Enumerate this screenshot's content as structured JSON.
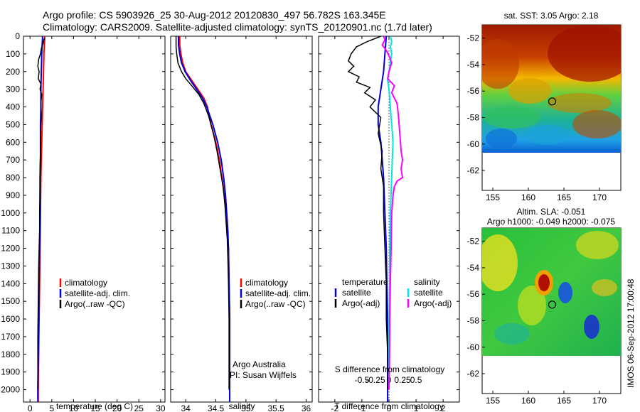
{
  "header": {
    "line1": "Argo profile: CS 5903926_25 30-Aug-2012 20120830_497 56.782S 163.345E",
    "line2": "Climatology: CARS2009. Satellite-adjusted climatology: synTS_20120901.nc (1.7d later)"
  },
  "colors": {
    "climatology": "#ff0000",
    "satellite": "#0000dd",
    "argo": "#000000",
    "satellite_salinity": "#00e5e5",
    "argo_salinity_adj": "#ff00ff"
  },
  "depth_axis": {
    "ylim": [
      0,
      2070
    ],
    "ticks": [
      0,
      100,
      200,
      300,
      400,
      500,
      600,
      700,
      800,
      900,
      1000,
      1100,
      1200,
      1300,
      1400,
      1500,
      1600,
      1700,
      1800,
      1900,
      2000
    ]
  },
  "legends": {
    "temp": [
      "climatology",
      "satellite-adj. clim.",
      "Argo(..raw -QC)"
    ],
    "sal": [
      "climatology",
      "satellite-adj. clim.",
      "Argo(..raw -QC)"
    ],
    "diff_temperature": {
      "title": "temperature",
      "items": [
        "satellite",
        "Argo(-adj)"
      ]
    },
    "diff_salinity": {
      "title": "salinity",
      "items": [
        "satellite",
        "Argo(-adj)"
      ]
    }
  },
  "annotations": {
    "org": "Argo Australia",
    "pi": "PI: Susan Wijffels",
    "s_diff_label": "S difference from climatology",
    "watermark": "IMOS 06-Sep-2012 17:00:48"
  },
  "chart_data": [
    {
      "type": "line",
      "xlabel": "temperature (deg C)",
      "xlim": [
        -1.5,
        31
      ],
      "xticks": [
        0,
        5,
        10,
        15,
        20,
        25,
        30
      ],
      "ylabel": "",
      "ylim": [
        0,
        2070
      ],
      "series": [
        {
          "name": "climatology",
          "color": "red",
          "points": [
            [
              3.4,
              0
            ],
            [
              3.3,
              50
            ],
            [
              3.2,
              100
            ],
            [
              3.1,
              200
            ],
            [
              3.0,
              300
            ],
            [
              2.9,
              400
            ],
            [
              2.8,
              500
            ],
            [
              2.7,
              600
            ],
            [
              2.6,
              700
            ],
            [
              2.5,
              800
            ],
            [
              2.4,
              1000
            ],
            [
              2.3,
              1200
            ],
            [
              2.2,
              1400
            ],
            [
              2.1,
              1600
            ],
            [
              2.0,
              1800
            ],
            [
              1.9,
              2000
            ],
            [
              1.9,
              2070
            ]
          ]
        },
        {
          "name": "satellite-adj. clim.",
          "color": "blue",
          "points": [
            [
              2.9,
              0
            ],
            [
              2.8,
              50
            ],
            [
              2.7,
              100
            ],
            [
              2.6,
              200
            ],
            [
              2.5,
              300
            ],
            [
              2.5,
              400
            ],
            [
              2.4,
              500
            ],
            [
              2.4,
              600
            ],
            [
              2.4,
              700
            ],
            [
              2.3,
              800
            ],
            [
              2.3,
              1000
            ],
            [
              2.2,
              1200
            ],
            [
              2.1,
              1400
            ],
            [
              2.0,
              1600
            ],
            [
              1.9,
              1800
            ],
            [
              1.8,
              2000
            ],
            [
              1.8,
              2070
            ]
          ]
        },
        {
          "name": "Argo(..raw -QC)",
          "color": "black",
          "points": [
            [
              3.3,
              10
            ],
            [
              3.0,
              40
            ],
            [
              2.6,
              70
            ],
            [
              2.4,
              100
            ],
            [
              2.0,
              130
            ],
            [
              1.8,
              170
            ],
            [
              2.1,
              200
            ],
            [
              1.9,
              240
            ],
            [
              2.5,
              270
            ],
            [
              2.3,
              300
            ],
            [
              2.7,
              330
            ],
            [
              2.5,
              380
            ],
            [
              2.6,
              450
            ],
            [
              2.4,
              550
            ],
            [
              2.4,
              650
            ],
            [
              2.3,
              750
            ],
            [
              2.3,
              850
            ],
            [
              2.2,
              1000
            ],
            [
              2.2,
              1100
            ],
            [
              2.1,
              1200
            ],
            [
              2.0,
              1300
            ],
            [
              1.9,
              1500
            ],
            [
              1.8,
              1700
            ],
            [
              1.8,
              1900
            ],
            [
              1.8,
              2000
            ]
          ]
        }
      ]
    },
    {
      "type": "line",
      "xlabel": "salinity",
      "xlim": [
        33.75,
        36.1
      ],
      "xticks": [
        34,
        34.5,
        35,
        35.5,
        36
      ],
      "ylabel": "",
      "ylim": [
        0,
        2070
      ],
      "series": [
        {
          "name": "climatology",
          "color": "red",
          "points": [
            [
              33.9,
              0
            ],
            [
              33.9,
              50
            ],
            [
              33.92,
              100
            ],
            [
              33.95,
              150
            ],
            [
              34.0,
              200
            ],
            [
              34.1,
              250
            ],
            [
              34.2,
              300
            ],
            [
              34.3,
              350
            ],
            [
              34.36,
              400
            ],
            [
              34.42,
              500
            ],
            [
              34.5,
              600
            ],
            [
              34.56,
              700
            ],
            [
              34.6,
              800
            ],
            [
              34.64,
              900
            ],
            [
              34.67,
              1000
            ],
            [
              34.69,
              1100
            ],
            [
              34.71,
              1200
            ],
            [
              34.72,
              1400
            ],
            [
              34.73,
              1600
            ],
            [
              34.73,
              1800
            ],
            [
              34.73,
              2000
            ],
            [
              34.73,
              2070
            ]
          ]
        },
        {
          "name": "satellite-adj. clim.",
          "color": "blue",
          "points": [
            [
              33.88,
              0
            ],
            [
              33.88,
              50
            ],
            [
              33.9,
              100
            ],
            [
              33.93,
              150
            ],
            [
              33.99,
              200
            ],
            [
              34.08,
              250
            ],
            [
              34.18,
              300
            ],
            [
              34.28,
              350
            ],
            [
              34.35,
              400
            ],
            [
              34.45,
              500
            ],
            [
              34.53,
              600
            ],
            [
              34.59,
              700
            ],
            [
              34.63,
              800
            ],
            [
              34.66,
              900
            ],
            [
              34.68,
              1000
            ],
            [
              34.7,
              1100
            ],
            [
              34.71,
              1200
            ],
            [
              34.72,
              1400
            ],
            [
              34.73,
              1600
            ],
            [
              34.73,
              1800
            ],
            [
              34.73,
              2000
            ],
            [
              34.73,
              2070
            ]
          ]
        },
        {
          "name": "Argo(..raw -QC)",
          "color": "black",
          "points": [
            [
              33.84,
              0
            ],
            [
              33.84,
              60
            ],
            [
              33.85,
              100
            ],
            [
              33.87,
              150
            ],
            [
              33.93,
              200
            ],
            [
              34.0,
              240
            ],
            [
              34.1,
              280
            ],
            [
              34.22,
              330
            ],
            [
              34.3,
              380
            ],
            [
              34.38,
              450
            ],
            [
              34.46,
              550
            ],
            [
              34.52,
              650
            ],
            [
              34.57,
              750
            ],
            [
              34.62,
              850
            ],
            [
              34.65,
              950
            ],
            [
              34.67,
              1050
            ],
            [
              34.69,
              1150
            ],
            [
              34.7,
              1250
            ],
            [
              34.71,
              1400
            ],
            [
              34.72,
              1600
            ],
            [
              34.72,
              1800
            ],
            [
              34.72,
              2000
            ]
          ]
        }
      ]
    },
    {
      "type": "line",
      "xlabel": "T difference from climatology",
      "xlim": [
        -2.6,
        2.6
      ],
      "xticks": [
        -2,
        -1,
        0,
        1,
        2
      ],
      "top_xlabel": "S difference from climatology",
      "top_xticks": [
        "-0.5",
        "-0.25",
        "0",
        "0.25",
        "0.5"
      ],
      "ylabel": "",
      "ylim": [
        0,
        2070
      ],
      "series": [
        {
          "name": "temperature satellite",
          "color": "blue",
          "points": [
            [
              -0.1,
              0
            ],
            [
              -0.15,
              100
            ],
            [
              -0.2,
              200
            ],
            [
              -0.3,
              300
            ],
            [
              -0.4,
              400
            ],
            [
              -0.4,
              500
            ],
            [
              -0.3,
              600
            ],
            [
              -0.25,
              700
            ],
            [
              -0.2,
              800
            ],
            [
              -0.15,
              1000
            ],
            [
              -0.1,
              1200
            ],
            [
              -0.08,
              1400
            ],
            [
              -0.05,
              1600
            ],
            [
              -0.05,
              1800
            ],
            [
              -0.05,
              2000
            ],
            [
              -0.05,
              2070
            ]
          ]
        },
        {
          "name": "temperature Argo(-adj)",
          "color": "black",
          "points": [
            [
              -0.3,
              0
            ],
            [
              -0.8,
              30
            ],
            [
              -1.2,
              60
            ],
            [
              -1.4,
              100
            ],
            [
              -1.5,
              140
            ],
            [
              -1.3,
              170
            ],
            [
              -1.5,
              200
            ],
            [
              -1.1,
              230
            ],
            [
              -1.2,
              260
            ],
            [
              -0.7,
              290
            ],
            [
              -0.9,
              320
            ],
            [
              -0.5,
              360
            ],
            [
              -0.7,
              400
            ],
            [
              -0.3,
              460
            ],
            [
              -0.4,
              550
            ],
            [
              -0.25,
              650
            ],
            [
              -0.3,
              750
            ],
            [
              -0.2,
              850
            ],
            [
              -0.2,
              1000
            ],
            [
              -0.15,
              1200
            ],
            [
              -0.1,
              1400
            ],
            [
              -0.1,
              1600
            ],
            [
              -0.05,
              1800
            ],
            [
              -0.05,
              2000
            ]
          ]
        },
        {
          "name": "salinity satellite",
          "color": "cyan",
          "points": [
            [
              0.05,
              0
            ],
            [
              0.1,
              30
            ],
            [
              0.05,
              60
            ],
            [
              0.1,
              100
            ],
            [
              0.05,
              150
            ],
            [
              0.0,
              200
            ],
            [
              -0.05,
              250
            ],
            [
              0.0,
              300
            ],
            [
              0.05,
              400
            ],
            [
              0.1,
              500
            ],
            [
              0.15,
              600
            ],
            [
              0.12,
              700
            ],
            [
              0.1,
              800
            ],
            [
              0.05,
              1000
            ],
            [
              0.03,
              1200
            ],
            [
              0.02,
              1400
            ],
            [
              0.01,
              1600
            ],
            [
              0.0,
              1800
            ],
            [
              0.0,
              2000
            ]
          ]
        },
        {
          "name": "salinity Argo(-adj)",
          "color": "magenta",
          "points": [
            [
              -0.2,
              0
            ],
            [
              -0.15,
              20
            ],
            [
              -0.25,
              50
            ],
            [
              -0.1,
              80
            ],
            [
              0.0,
              110
            ],
            [
              0.1,
              150
            ],
            [
              0.0,
              200
            ],
            [
              -0.05,
              240
            ],
            [
              0.2,
              280
            ],
            [
              0.1,
              320
            ],
            [
              0.3,
              380
            ],
            [
              0.35,
              450
            ],
            [
              0.4,
              550
            ],
            [
              0.45,
              650
            ],
            [
              0.5,
              700
            ],
            [
              0.45,
              750
            ],
            [
              0.5,
              800
            ],
            [
              0.3,
              820
            ],
            [
              0.2,
              850
            ],
            [
              0.15,
              900
            ],
            [
              0.1,
              1000
            ],
            [
              0.08,
              1200
            ],
            [
              0.05,
              1400
            ],
            [
              0.03,
              1600
            ],
            [
              0.02,
              1800
            ],
            [
              0.0,
              2000
            ]
          ]
        }
      ]
    },
    {
      "type": "heatmap",
      "title": "sat. SST: 3.05 Argo: 2.18",
      "xticks": [
        155,
        160,
        165,
        170
      ],
      "yticks": [
        -52,
        -54,
        -56,
        -58,
        -60,
        -62
      ],
      "xlim": [
        153.5,
        173
      ],
      "ylim": [
        -63.5,
        -51
      ],
      "data_ylim": [
        -60,
        -51
      ],
      "argo_position": [
        163.345,
        -56.782
      ]
    },
    {
      "type": "heatmap",
      "title": "Altim. SLA: -0.051",
      "subtitle": "Argo h1000: -0.049 h2000: -0.075",
      "xticks": [
        155,
        160,
        165,
        170
      ],
      "yticks": [
        -52,
        -54,
        -56,
        -58,
        -60,
        -62
      ],
      "xlim": [
        153.5,
        173
      ],
      "ylim": [
        -63.5,
        -51
      ],
      "data_ylim": [
        -60,
        -51
      ],
      "argo_position": [
        163.345,
        -56.782
      ]
    }
  ]
}
